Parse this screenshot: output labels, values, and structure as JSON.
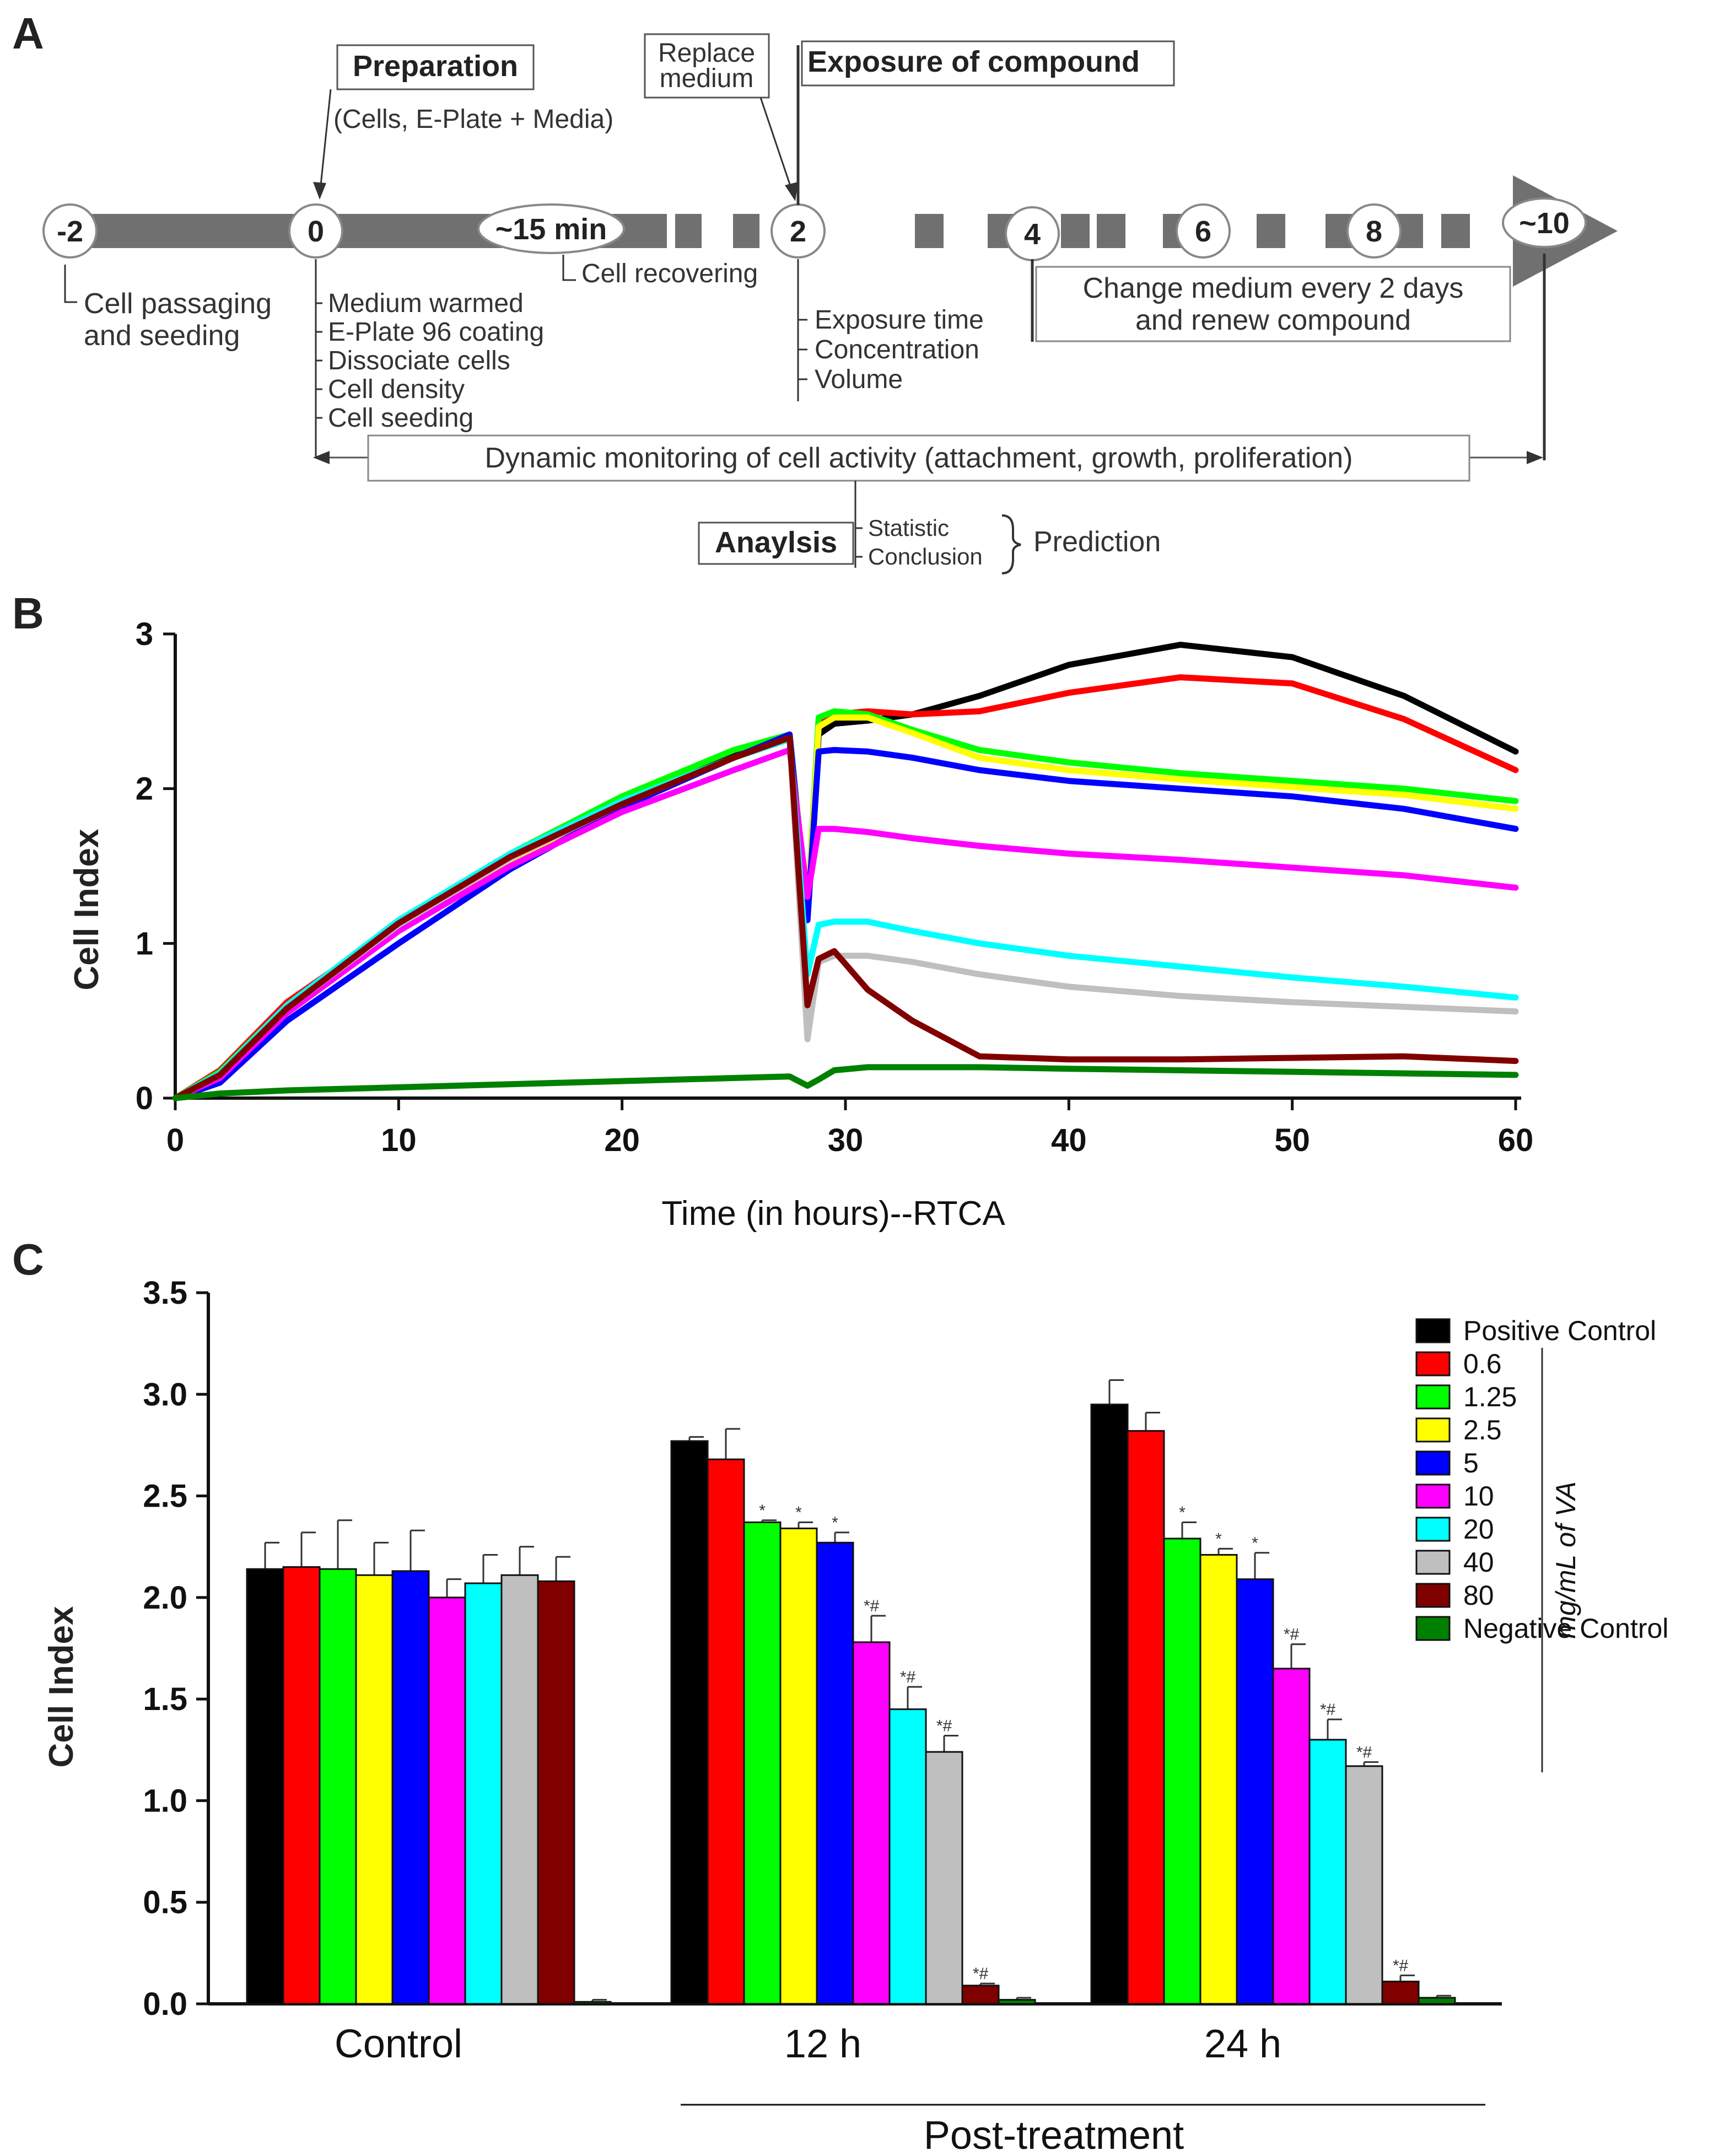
{
  "panels": {
    "a": "A",
    "b": "B",
    "c": "C"
  },
  "timeline": {
    "nodes": [
      "-2",
      "0",
      "~15 min",
      "2",
      "4",
      "6",
      "8",
      "~10"
    ],
    "preparation": "Preparation",
    "preparation_sub": "(Cells, E-Plate + Media)",
    "replace_medium_line1": "Replace",
    "replace_medium_line2": "medium",
    "exposure": "Exposure of compound",
    "passaging_line1": "Cell passaging",
    "passaging_line2": "and seeding",
    "steps_day0": [
      "Medium warmed",
      "E-Plate 96 coating",
      "Dissociate cells",
      "Cell density",
      "Cell seeding"
    ],
    "cell_recovering": "Cell recovering",
    "steps_day2": [
      "Exposure time",
      "Concentration",
      "Volume"
    ],
    "change_medium_line1": "Change medium every 2 days",
    "change_medium_line2": "and renew compound",
    "monitoring": "Dynamic monitoring of cell activity (attachment, growth, proliferation)",
    "analysis": "Anaylsis",
    "analysis_items": [
      "Statistic",
      "Conclusion"
    ],
    "prediction": "Prediction"
  },
  "colors": {
    "Positive Control": "#000000",
    "0.6": "#ff0000",
    "1.25": "#00ff00",
    "2.5": "#ffff00",
    "5": "#0000ff",
    "10": "#ff00ff",
    "20": "#00ffff",
    "40": "#bfbfbf",
    "80": "#800000",
    "Negative Control": "#008000"
  },
  "chart_data": [
    {
      "type": "line",
      "title": "",
      "xlabel": "Time (in hours)--RTCA",
      "ylabel": "Cell Index",
      "xlim": [
        0,
        60
      ],
      "ylim": [
        0,
        3
      ],
      "xticks": [
        0,
        10,
        20,
        30,
        40,
        50,
        60
      ],
      "yticks": [
        0,
        1,
        2,
        3
      ],
      "grid": false,
      "x": [
        0,
        2,
        5,
        10,
        15,
        20,
        25,
        27.5,
        28.3,
        28.8,
        29.5,
        31,
        33,
        36,
        40,
        45,
        50,
        55,
        60
      ],
      "series": [
        {
          "name": "Positive Control",
          "values": [
            0,
            0.15,
            0.58,
            1.12,
            1.55,
            1.9,
            2.22,
            2.35,
            1.2,
            2.35,
            2.42,
            2.44,
            2.48,
            2.6,
            2.8,
            2.93,
            2.85,
            2.6,
            2.24
          ]
        },
        {
          "name": "0.6",
          "values": [
            0,
            0.18,
            0.62,
            1.12,
            1.55,
            1.9,
            2.2,
            2.35,
            1.2,
            2.42,
            2.48,
            2.5,
            2.48,
            2.5,
            2.62,
            2.72,
            2.68,
            2.45,
            2.12
          ]
        },
        {
          "name": "1.25",
          "values": [
            0,
            0.17,
            0.6,
            1.15,
            1.58,
            1.95,
            2.25,
            2.35,
            1.2,
            2.46,
            2.5,
            2.48,
            2.38,
            2.25,
            2.17,
            2.1,
            2.05,
            2.0,
            1.92
          ]
        },
        {
          "name": "2.5",
          "values": [
            0,
            0.14,
            0.55,
            1.08,
            1.53,
            1.9,
            2.2,
            2.33,
            1.2,
            2.4,
            2.46,
            2.46,
            2.36,
            2.2,
            2.12,
            2.06,
            2.01,
            1.96,
            1.87
          ]
        },
        {
          "name": "5",
          "values": [
            0,
            0.1,
            0.5,
            1.0,
            1.48,
            1.88,
            2.2,
            2.35,
            1.15,
            2.24,
            2.25,
            2.24,
            2.2,
            2.12,
            2.05,
            2.0,
            1.95,
            1.87,
            1.74
          ]
        },
        {
          "name": "10",
          "values": [
            0,
            0.13,
            0.55,
            1.08,
            1.5,
            1.85,
            2.12,
            2.25,
            1.3,
            1.74,
            1.74,
            1.72,
            1.68,
            1.63,
            1.58,
            1.54,
            1.49,
            1.44,
            1.36
          ]
        },
        {
          "name": "20",
          "values": [
            0,
            0.16,
            0.6,
            1.15,
            1.58,
            1.92,
            2.2,
            2.32,
            0.8,
            1.12,
            1.14,
            1.14,
            1.08,
            1.0,
            0.92,
            0.85,
            0.78,
            0.72,
            0.65
          ]
        },
        {
          "name": "40",
          "values": [
            0,
            0.15,
            0.58,
            1.12,
            1.55,
            1.9,
            2.2,
            2.33,
            0.38,
            0.88,
            0.92,
            0.92,
            0.88,
            0.8,
            0.72,
            0.66,
            0.62,
            0.59,
            0.56
          ]
        },
        {
          "name": "80",
          "values": [
            0,
            0.15,
            0.58,
            1.13,
            1.56,
            1.9,
            2.2,
            2.33,
            0.6,
            0.9,
            0.95,
            0.7,
            0.5,
            0.27,
            0.25,
            0.25,
            0.26,
            0.27,
            0.24
          ]
        },
        {
          "name": "Negative Control",
          "values": [
            0,
            0.03,
            0.05,
            0.07,
            0.09,
            0.11,
            0.13,
            0.14,
            0.08,
            0.12,
            0.18,
            0.2,
            0.2,
            0.2,
            0.19,
            0.18,
            0.17,
            0.16,
            0.15
          ]
        }
      ]
    },
    {
      "type": "bar",
      "title": "",
      "xlabel": "",
      "ylabel": "Cell Index",
      "ylim": [
        0,
        3.5
      ],
      "yticks": [
        "0.0",
        "0.5",
        "1.0",
        "1.5",
        "2.0",
        "2.5",
        "3.0",
        "3.5"
      ],
      "grid": false,
      "categories": [
        "Control",
        "12 h",
        "24 h"
      ],
      "group_bracket_label": "Post-treatment",
      "legend_unit_label": "mg/mL of VA",
      "legend_position": "top-right",
      "series": [
        {
          "name": "Positive Control",
          "values": [
            2.14,
            2.77,
            2.95
          ],
          "errors": [
            0.13,
            0.02,
            0.12
          ],
          "sig": [
            "",
            "",
            ""
          ]
        },
        {
          "name": "0.6",
          "values": [
            2.15,
            2.68,
            2.82
          ],
          "errors": [
            0.17,
            0.15,
            0.09
          ],
          "sig": [
            "",
            "",
            ""
          ]
        },
        {
          "name": "1.25",
          "values": [
            2.14,
            2.37,
            2.29
          ],
          "errors": [
            0.24,
            0.01,
            0.08
          ],
          "sig": [
            "",
            "*",
            "*"
          ]
        },
        {
          "name": "2.5",
          "values": [
            2.11,
            2.34,
            2.21
          ],
          "errors": [
            0.16,
            0.03,
            0.03
          ],
          "sig": [
            "",
            "*",
            "*"
          ]
        },
        {
          "name": "5",
          "values": [
            2.13,
            2.27,
            2.09
          ],
          "errors": [
            0.2,
            0.05,
            0.13
          ],
          "sig": [
            "",
            "*",
            "*"
          ]
        },
        {
          "name": "10",
          "values": [
            2.0,
            1.78,
            1.65
          ],
          "errors": [
            0.09,
            0.13,
            0.12
          ],
          "sig": [
            "",
            "*#",
            "*#"
          ]
        },
        {
          "name": "20",
          "values": [
            2.07,
            1.45,
            1.3
          ],
          "errors": [
            0.14,
            0.11,
            0.1
          ],
          "sig": [
            "",
            "*#",
            "*#"
          ]
        },
        {
          "name": "40",
          "values": [
            2.11,
            1.24,
            1.17
          ],
          "errors": [
            0.14,
            0.08,
            0.02
          ],
          "sig": [
            "",
            "*#",
            "*#"
          ]
        },
        {
          "name": "80",
          "values": [
            2.08,
            0.09,
            0.11
          ],
          "errors": [
            0.12,
            0.01,
            0.03
          ],
          "sig": [
            "",
            "*#",
            "*#"
          ]
        },
        {
          "name": "Negative Control",
          "values": [
            0.01,
            0.02,
            0.03
          ],
          "errors": [
            0.01,
            0.01,
            0.01
          ],
          "sig": [
            "",
            "",
            ""
          ]
        }
      ]
    }
  ]
}
